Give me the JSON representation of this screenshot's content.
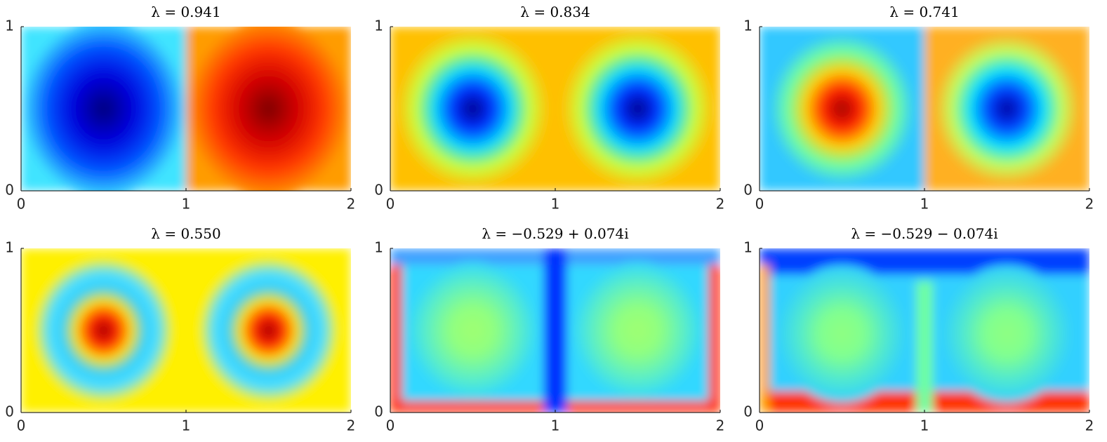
{
  "chart_data": [
    {
      "type": "heatmap",
      "title": "λ = 0.941",
      "xlim": [
        0,
        2
      ],
      "ylim": [
        0,
        1
      ],
      "xticks": [
        0,
        1,
        2
      ],
      "yticks": [
        0,
        1
      ]
    },
    {
      "type": "heatmap",
      "title": "λ = 0.834",
      "xlim": [
        0,
        2
      ],
      "ylim": [
        0,
        1
      ],
      "xticks": [
        0,
        1,
        2
      ],
      "yticks": [
        0,
        1
      ]
    },
    {
      "type": "heatmap",
      "title": "λ = 0.741",
      "xlim": [
        0,
        2
      ],
      "ylim": [
        0,
        1
      ],
      "xticks": [
        0,
        1,
        2
      ],
      "yticks": [
        0,
        1
      ]
    },
    {
      "type": "heatmap",
      "title": "λ = 0.550",
      "xlim": [
        0,
        2
      ],
      "ylim": [
        0,
        1
      ],
      "xticks": [
        0,
        1,
        2
      ],
      "yticks": [
        0,
        1
      ]
    },
    {
      "type": "heatmap",
      "title": "λ = −0.529 + 0.074i",
      "xlim": [
        0,
        2
      ],
      "ylim": [
        0,
        1
      ],
      "xticks": [
        0,
        1,
        2
      ],
      "yticks": [
        0,
        1
      ]
    },
    {
      "type": "heatmap",
      "title": "λ = −0.529 − 0.074i",
      "xlim": [
        0,
        2
      ],
      "ylim": [
        0,
        1
      ],
      "xticks": [
        0,
        1,
        2
      ],
      "yticks": [
        0,
        1
      ]
    }
  ]
}
